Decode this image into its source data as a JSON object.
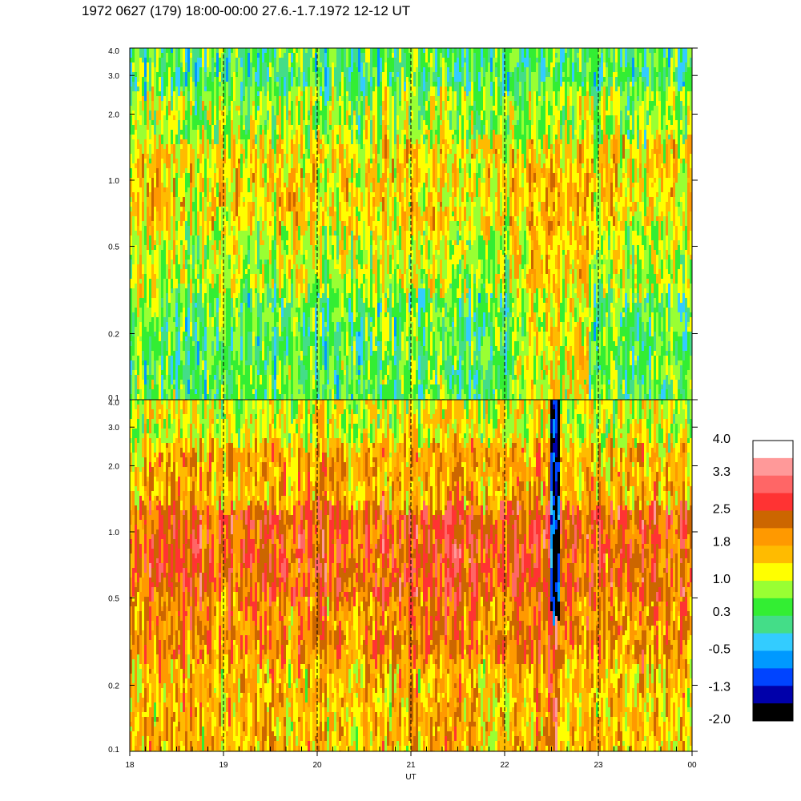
{
  "title": "1972 0627 (179) 18:00-00:00 27.6.-1.7.1972  12-12 UT",
  "chart_data": [
    {
      "type": "heatmap",
      "panel": "upper",
      "title": "",
      "ylabel": "",
      "xlabel": "",
      "y_scale": "log",
      "ylim": [
        0.1,
        4.0
      ],
      "yticks": [
        "4.0",
        "3.0",
        "2.0",
        "1.0",
        "0.5",
        "0.2",
        "0.1"
      ],
      "yticks_values": [
        4.0,
        3.0,
        2.0,
        1.0,
        0.5,
        0.2,
        0.1
      ],
      "xlim": [
        18,
        24
      ],
      "grid": "vertical dashed at each hour",
      "bands": [
        {
          "y_from": 2.5,
          "y_to": 4.0,
          "dominant_level": 0.3
        },
        {
          "y_from": 1.5,
          "y_to": 2.5,
          "dominant_level": 0.8
        },
        {
          "y_from": 0.6,
          "y_to": 1.5,
          "dominant_level": 1.3
        },
        {
          "y_from": 0.3,
          "y_to": 0.6,
          "dominant_level": 0.9
        },
        {
          "y_from": 0.1,
          "y_to": 0.3,
          "dominant_level": 0.4
        }
      ],
      "feature": {
        "x_from": 22.1,
        "x_to": 22.9,
        "y_from": 0.1,
        "y_to": 1.2,
        "dominant_level": 1.4
      }
    },
    {
      "type": "heatmap",
      "panel": "lower",
      "title": "",
      "ylabel": "",
      "xlabel": "UT",
      "y_scale": "log",
      "ylim": [
        0.1,
        4.0
      ],
      "yticks": [
        "4.0",
        "3.0",
        "2.0",
        "1.0",
        "0.5",
        "0.2",
        "0.1"
      ],
      "yticks_values": [
        4.0,
        3.0,
        2.0,
        1.0,
        0.5,
        0.2,
        0.1
      ],
      "xlim": [
        18,
        24
      ],
      "xticks": [
        "18",
        "19",
        "20",
        "21",
        "22",
        "23",
        "00"
      ],
      "xticks_values": [
        18,
        19,
        20,
        21,
        22,
        23,
        24
      ],
      "grid": "vertical dashed at each hour",
      "bands": [
        {
          "y_from": 2.5,
          "y_to": 4.0,
          "dominant_level": 1.1
        },
        {
          "y_from": 1.3,
          "y_to": 2.5,
          "dominant_level": 1.7
        },
        {
          "y_from": 0.5,
          "y_to": 1.3,
          "dominant_level": 2.4
        },
        {
          "y_from": 0.25,
          "y_to": 0.5,
          "dominant_level": 2.0
        },
        {
          "y_from": 0.1,
          "y_to": 0.25,
          "dominant_level": 1.6
        }
      ],
      "feature": {
        "x_from": 22.45,
        "x_to": 22.6,
        "y_from": 0.1,
        "y_to": 0.5,
        "dominant_level": 2.7
      },
      "gap": {
        "x_from": 22.5,
        "x_to": 22.58,
        "y_from": 0.4,
        "y_to": 4.0,
        "dominant_level": -1.5
      }
    }
  ],
  "colorbar": {
    "labels": [
      "4.0",
      "3.3",
      "2.5",
      "1.8",
      "1.0",
      "0.3",
      "-0.5",
      "-1.3",
      "-2.0"
    ],
    "label_values": [
      4.0,
      3.3,
      2.5,
      1.8,
      1.0,
      0.3,
      -0.5,
      -1.3,
      -2.0
    ],
    "range": [
      -2.0,
      4.0
    ],
    "colors": [
      "#ffffff",
      "#ff9999",
      "#ff6666",
      "#ff3333",
      "#cc6600",
      "#ff9900",
      "#ffbb00",
      "#ffff00",
      "#99ff33",
      "#33ee33",
      "#44dd88",
      "#33ccff",
      "#0099ff",
      "#0044ff",
      "#0000aa",
      "#000000"
    ]
  }
}
